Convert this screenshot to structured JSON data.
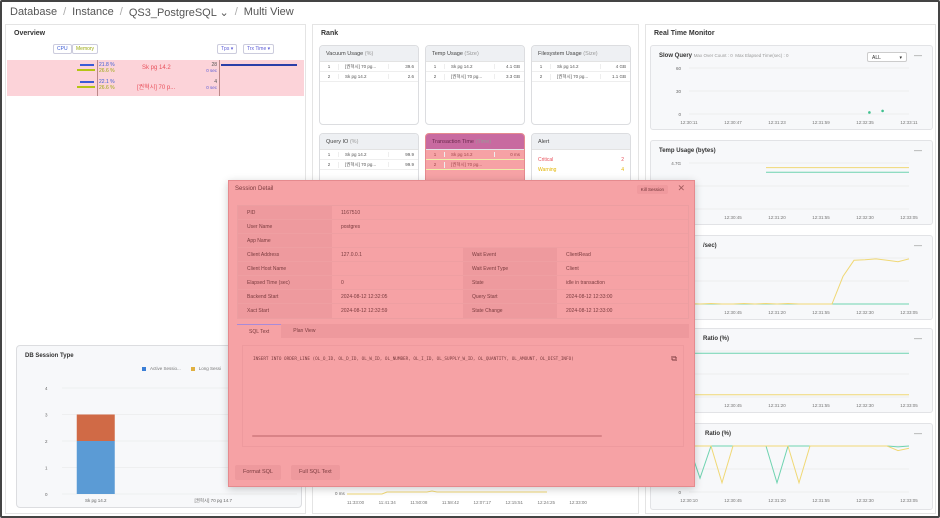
{
  "breadcrumb": {
    "items": [
      "Database",
      "Instance",
      "QS3_PostgreSQL",
      "Multi View"
    ],
    "dropdown_icon": "chevron-down-icon"
  },
  "overview": {
    "title": "Overview",
    "legend": {
      "cpu": "CPU",
      "memory": "Memory"
    },
    "sort_type": "Tps",
    "sort_time": "Trx Time",
    "rows": [
      {
        "name": "Sk pg 14.2",
        "cpu": "21.8 %",
        "memory": "26.6 %",
        "count": "28",
        "time": "0 sec",
        "cpu_pct": 21.8,
        "mem_pct": 26.6
      },
      {
        "name": "[권혁시] 70 p...",
        "cpu": "22.1 %",
        "memory": "26.6 %",
        "count": "4",
        "time": "0 sec",
        "cpu_pct": 22.1,
        "mem_pct": 26.6
      }
    ]
  },
  "db_session_type": {
    "title": "DB Session Type",
    "legend": [
      "Active Sessio...",
      "Long Sessi"
    ]
  },
  "rank": {
    "title": "Rank",
    "cards": [
      {
        "title": "Vacuum Usage",
        "unit": "(%)",
        "rows": [
          [
            "1",
            "[권혁시] 70 pg...",
            "39.6"
          ],
          [
            "2",
            "Sk pg 14.2",
            "2.6"
          ]
        ]
      },
      {
        "title": "Temp Usage",
        "unit": "(Size)",
        "rows": [
          [
            "1",
            "Sk pg 14.2",
            "4.1 GB"
          ],
          [
            "2",
            "[권혁시] 70 pg...",
            "3.3 GB"
          ]
        ]
      },
      {
        "title": "Filesystem Usage",
        "unit": "(Size)",
        "rows": [
          [
            "1",
            "Sk pg 14.2",
            "4 GB"
          ],
          [
            "2",
            "[권혁시] 70 pg...",
            "1.1 GB"
          ]
        ]
      },
      {
        "title": "Query IO",
        "unit": "(%)",
        "rows": [
          [
            "1",
            "Sk pg 14.2",
            "99.9"
          ],
          [
            "2",
            "[권혁시] 70 pg...",
            "99.9"
          ]
        ]
      },
      {
        "title": "Transaction Time",
        "unit": "(Time)",
        "rows": [
          [
            "1",
            "Sk pg 14.2",
            "0 ms"
          ],
          [
            "2",
            "[권혁시] 70 pg...",
            ""
          ]
        ]
      }
    ],
    "alert": {
      "title": "Alert",
      "critical_label": "Critical",
      "critical": "2",
      "warning_label": "Warning",
      "warning": "4"
    },
    "bottom_chart": {
      "y_label": "0 ms",
      "x_ticks": [
        "11:33:00",
        "11:41:34",
        "11:50:08",
        "11:58:42",
        "12:07:17",
        "12:15:51",
        "12:24:25",
        "12:33:00"
      ]
    }
  },
  "monitor": {
    "title": "Real Time Monitor",
    "slow_query": {
      "title": "Slow Query",
      "max_over_count_label": "Max Over Count :",
      "max_over_count": "0",
      "max_elapsed_label": "Max Elapsed Time(sec) :",
      "max_elapsed": "0",
      "filter": "ALL"
    },
    "temp_usage": {
      "title": "Temp Usage (bytes)"
    },
    "card3": {
      "title": "/sec)"
    },
    "card4": {
      "title": "Ratio (%)"
    },
    "card5": {
      "title": "Ratio (%)"
    }
  },
  "modal": {
    "title": "Session Detail",
    "kill_label": "Kill Session",
    "fields": {
      "pid_label": "PID",
      "pid": "1167510",
      "user_label": "User Name",
      "user": "postgres",
      "app_label": "App Name",
      "app": "",
      "client_addr_label": "Client Address",
      "client_addr": "127.0.0.1",
      "wait_event_label": "Wait Event",
      "wait_event": "ClientRead",
      "client_host_label": "Client Host Name",
      "client_host": "",
      "wait_type_label": "Wait Event Type",
      "wait_type": "Client",
      "elapsed_label": "Elapsed Time (sec)",
      "elapsed": "0",
      "state_label": "State",
      "state": "idle in transaction",
      "backend_label": "Backend Start",
      "backend": "2024-08-12 12:32:05",
      "query_start_label": "Query Start",
      "query_start": "2024-08-12 12:33:00",
      "xact_label": "Xact Start",
      "xact": "2024-08-12 12:32:59",
      "state_change_label": "State Change",
      "state_change": "2024-08-12 12:33:00"
    },
    "tabs": [
      "SQL Text",
      "Plan View"
    ],
    "sql": "INSERT INTO ORDER_LINE (OL_O_ID, OL_D_ID, OL_W_ID, OL_NUMBER, OL_I_ID, OL_SUPPLY_W_ID, OL_QUANTITY, OL_AMOUNT, OL_DIST_INFO)",
    "format_btn": "Format SQL",
    "full_btn": "Full SQL Text"
  },
  "colors": {
    "cpu": "#3b5bd6",
    "memory": "#b5c414",
    "active": "#5b9bd5",
    "long": "#d06a46",
    "green": "#6fd3b0",
    "yellow": "#f0d875",
    "critical": "#e8505b",
    "warning": "#e3b500",
    "overlay": "#f6a2a5",
    "highlight": "#c86aa0"
  },
  "chart_data": [
    {
      "type": "bar",
      "stacked": true,
      "title": "DB Session Type",
      "categories": [
        "Sk pg 14.2",
        "[권혁시] 70 pg 14.7"
      ],
      "series": [
        {
          "name": "Active Sessio...",
          "values": [
            2,
            0
          ]
        },
        {
          "name": "Long Sessi",
          "values": [
            1,
            0
          ]
        }
      ],
      "ylim": [
        0,
        4
      ],
      "yticks": [
        "0",
        "1",
        "2",
        "3",
        "4"
      ]
    },
    {
      "type": "scatter",
      "title": "Slow Query",
      "x_ticks": [
        "12:30:11",
        "12:30:47",
        "12:31:23",
        "12:31:59",
        "12:32:35",
        "12:33:11"
      ],
      "yticks": [
        "0",
        "30",
        "60"
      ],
      "ylim": [
        0,
        60
      ],
      "points": [
        [
          0.82,
          2
        ],
        [
          0.88,
          4
        ]
      ]
    },
    {
      "type": "line",
      "title": "Temp Usage (bytes)",
      "x_ticks": [
        "",
        "12:30:45",
        "12:31:20",
        "12:31:55",
        "12:32:30",
        "12:33:05"
      ],
      "yticks": [
        "4.7G"
      ],
      "ylim": [
        0,
        10
      ],
      "series": [
        {
          "values": [
            null,
            null,
            null,
            null,
            null,
            null,
            null,
            9,
            9,
            9,
            9,
            9,
            9,
            9,
            9,
            9,
            9,
            9,
            9,
            9,
            9
          ]
        },
        {
          "values": [
            null,
            null,
            null,
            null,
            null,
            null,
            null,
            8,
            8,
            8,
            8,
            8,
            8,
            8,
            8,
            8,
            8,
            8,
            8,
            8,
            8
          ]
        }
      ]
    },
    {
      "type": "line",
      "title": "/sec)",
      "x_ticks": [
        "",
        "12:30:45",
        "12:31:20",
        "12:31:55",
        "12:32:30",
        "12:33:05"
      ],
      "ylim": [
        0,
        10
      ],
      "series": [
        {
          "values": [
            0,
            0,
            0,
            0,
            0,
            0,
            0,
            0,
            0,
            0,
            0,
            0,
            0,
            0,
            0,
            0,
            0,
            0,
            0,
            0,
            0
          ]
        },
        {
          "values": [
            0.1,
            0,
            0.1,
            0,
            0,
            0.1,
            0,
            0.1,
            0,
            0.1,
            0,
            0,
            0,
            0,
            6,
            9.5,
            9.6,
            9.8,
            9.5,
            9.2,
            9.8
          ]
        }
      ]
    },
    {
      "type": "line",
      "title": "Ratio (%)",
      "x_ticks": [
        "",
        "12:30:45",
        "12:31:20",
        "12:31:55",
        "12:32:30",
        "12:33:05"
      ],
      "ylim": [
        0,
        100
      ],
      "series": [
        {
          "values": [
            95,
            95,
            95,
            95,
            95,
            95,
            95,
            95,
            95,
            95,
            95,
            95,
            95,
            95,
            95,
            95,
            95,
            95,
            95,
            95,
            95
          ]
        },
        {
          "values": [
            5,
            5,
            5,
            5,
            5,
            5,
            5,
            5,
            5,
            5,
            5,
            5,
            5,
            5,
            5,
            5,
            5,
            5,
            5,
            5,
            5
          ]
        }
      ]
    },
    {
      "type": "line",
      "title": "Ratio (%)",
      "x_ticks": [
        "12:30:10",
        "12:30:45",
        "12:31:20",
        "12:31:55",
        "12:32:30",
        "12:33:05"
      ],
      "yticks": [
        "0"
      ],
      "ylim": [
        0,
        100
      ],
      "series": [
        {
          "values": [
            100,
            30,
            100,
            100,
            100,
            100,
            100,
            100,
            20,
            100,
            100,
            100,
            100,
            100,
            100,
            100,
            100,
            100,
            100,
            98,
            100
          ]
        },
        {
          "values": [
            100,
            100,
            100,
            20,
            100,
            100,
            100,
            100,
            100,
            100,
            20,
            100,
            100,
            100,
            100,
            100,
            100,
            100,
            100,
            90,
            95
          ]
        }
      ]
    }
  ]
}
